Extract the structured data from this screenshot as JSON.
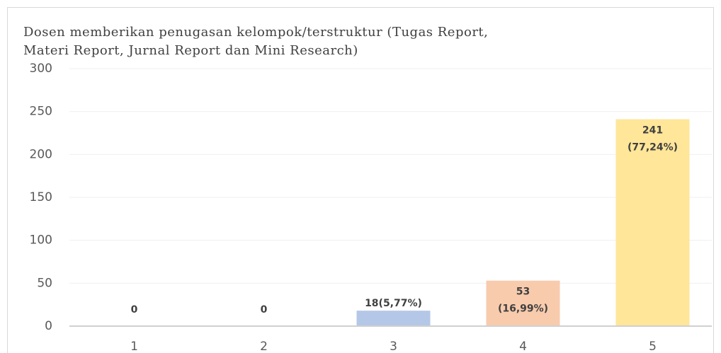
{
  "chart_data": {
    "type": "bar",
    "title": [
      "Dosen memberikan penugasan kelompok/terstruktur (Tugas Report,",
      "Materi Report, Jurnal Report dan Mini Research)"
    ],
    "categories": [
      "1",
      "2",
      "3",
      "4",
      "5"
    ],
    "values": [
      0,
      0,
      18,
      53,
      241
    ],
    "value_labels": [
      [
        "0"
      ],
      [
        "0"
      ],
      [
        "18(5,77%)"
      ],
      [
        "53",
        "(16,99%)"
      ],
      [
        "241",
        "(77,24%)"
      ]
    ],
    "colors": [
      "#b4c7e7",
      "#b4c7e7",
      "#b4c7e7",
      "#f8cbad",
      "#ffe699"
    ],
    "ylim": [
      0,
      300
    ],
    "yticks": [
      0,
      50,
      100,
      150,
      200,
      250,
      300
    ],
    "grid": true
  }
}
